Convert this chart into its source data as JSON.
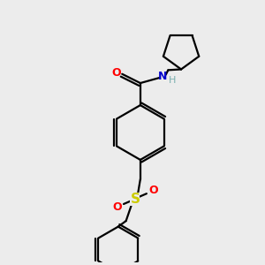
{
  "bg_color": "#ececec",
  "line_color": "#000000",
  "O_color": "#ff0000",
  "N_color": "#0000cc",
  "S_color": "#cccc00",
  "H_color": "#7ab0b0",
  "line_width": 1.6,
  "figsize": [
    3.0,
    3.0
  ],
  "dpi": 100,
  "xlim": [
    0,
    10
  ],
  "ylim": [
    0,
    10
  ]
}
